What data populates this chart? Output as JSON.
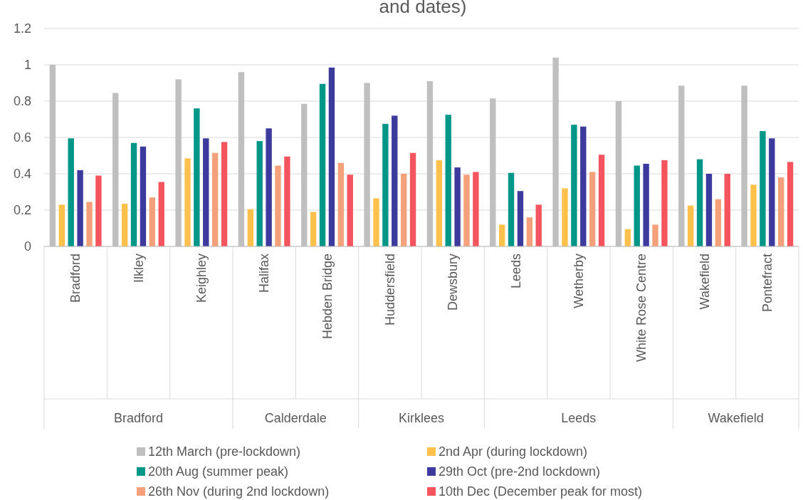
{
  "chart_data": {
    "type": "bar",
    "title": "and dates)",
    "categories": [
      "Bradford",
      "Ilkley",
      "Keighley",
      "Halifax",
      "Hebden Bridge",
      "Huddersfield",
      "Dewsbury",
      "Leeds",
      "Wetherby",
      "White Rose Centre",
      "Wakefield",
      "Pontefract"
    ],
    "series": [
      {
        "name": "12th March (pre-lockdown)",
        "color": "#bfbfbf",
        "values": [
          1.0,
          0.845,
          0.92,
          0.96,
          0.785,
          0.9,
          0.91,
          0.815,
          1.04,
          0.8,
          0.885,
          0.885
        ]
      },
      {
        "name": "2nd Apr (during lockdown)",
        "color": "#ffc04c",
        "values": [
          0.23,
          0.235,
          0.485,
          0.205,
          0.19,
          0.265,
          0.475,
          0.12,
          0.32,
          0.095,
          0.225,
          0.34
        ]
      },
      {
        "name": "20th Aug (summer peak)",
        "color": "#009688",
        "values": [
          0.595,
          0.57,
          0.76,
          0.58,
          0.895,
          0.675,
          0.725,
          0.405,
          0.67,
          0.445,
          0.48,
          0.635
        ]
      },
      {
        "name": "29th Oct (pre-2nd lockdown)",
        "color": "#3d3a9e",
        "values": [
          0.42,
          0.55,
          0.595,
          0.65,
          0.985,
          0.72,
          0.435,
          0.305,
          0.66,
          0.455,
          0.4,
          0.595
        ]
      },
      {
        "name": "26th Nov (during 2nd lockdown)",
        "color": "#f4a07a",
        "values": [
          0.245,
          0.27,
          0.515,
          0.445,
          0.46,
          0.4,
          0.395,
          0.16,
          0.41,
          0.12,
          0.26,
          0.38
        ]
      },
      {
        "name": "10th Dec (December peak for most)",
        "color": "#f4545e",
        "values": [
          0.39,
          0.355,
          0.575,
          0.495,
          0.395,
          0.515,
          0.41,
          0.23,
          0.505,
          0.475,
          0.4,
          0.465
        ]
      }
    ],
    "annotations": [
      "Bradford",
      "Calderdale",
      "Kirklees",
      "Leeds",
      "Wakefield"
    ],
    "ylim": [
      0,
      1.2
    ],
    "yticks": [
      0,
      0.2,
      0.4,
      0.6,
      0.8,
      1,
      1.2
    ],
    "grid": "y",
    "legend": "bottom"
  }
}
